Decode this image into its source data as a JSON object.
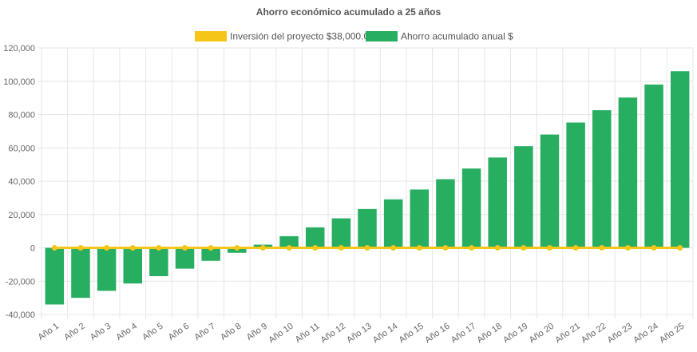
{
  "chart_data": {
    "type": "bar",
    "title": "Ahorro económico acumulado a 25 años",
    "legend": [
      {
        "label": "Inversión del proyecto $38,000.00",
        "color": "#f5c518"
      },
      {
        "label": "Ahorro acumulado anual $",
        "color": "#27ae60"
      }
    ],
    "legend_position": "top",
    "grid": true,
    "ylim": [
      -40000,
      120000
    ],
    "yticks": [
      120000,
      100000,
      80000,
      60000,
      40000,
      20000,
      0,
      -20000,
      -40000
    ],
    "ytick_labels": [
      "120,000",
      "100,000",
      "80,000",
      "60,000",
      "40,000",
      "20,000",
      "0",
      "-20,000",
      "-40,000"
    ],
    "categories": [
      "Año 1",
      "Año 2",
      "Año 3",
      "Año 4",
      "Año 5",
      "Año 6",
      "Año 7",
      "Año 8",
      "Año 9",
      "Año 10",
      "Año 11",
      "Año 12",
      "Año 13",
      "Año 14",
      "Año 15",
      "Año 16",
      "Año 17",
      "Año 18",
      "Año 19",
      "Año 20",
      "Año 21",
      "Año 22",
      "Año 23",
      "Año 24",
      "Año 25"
    ],
    "series": [
      {
        "name": "Ahorro acumulado anual $",
        "type": "bar",
        "color": "#27ae60",
        "values": [
          -34000,
          -30000,
          -25800,
          -21400,
          -17000,
          -12500,
          -7800,
          -3000,
          1900,
          7000,
          12300,
          17700,
          23300,
          29100,
          35000,
          41200,
          47600,
          54200,
          61000,
          68000,
          75200,
          82600,
          90200,
          98000,
          106000
        ]
      },
      {
        "name": "Inversión del proyecto $38,000.00",
        "type": "line",
        "color": "#f5c518",
        "values": [
          0,
          0,
          0,
          0,
          0,
          0,
          0,
          0,
          0,
          0,
          0,
          0,
          0,
          0,
          0,
          0,
          0,
          0,
          0,
          0,
          0,
          0,
          0,
          0,
          0
        ]
      }
    ]
  }
}
